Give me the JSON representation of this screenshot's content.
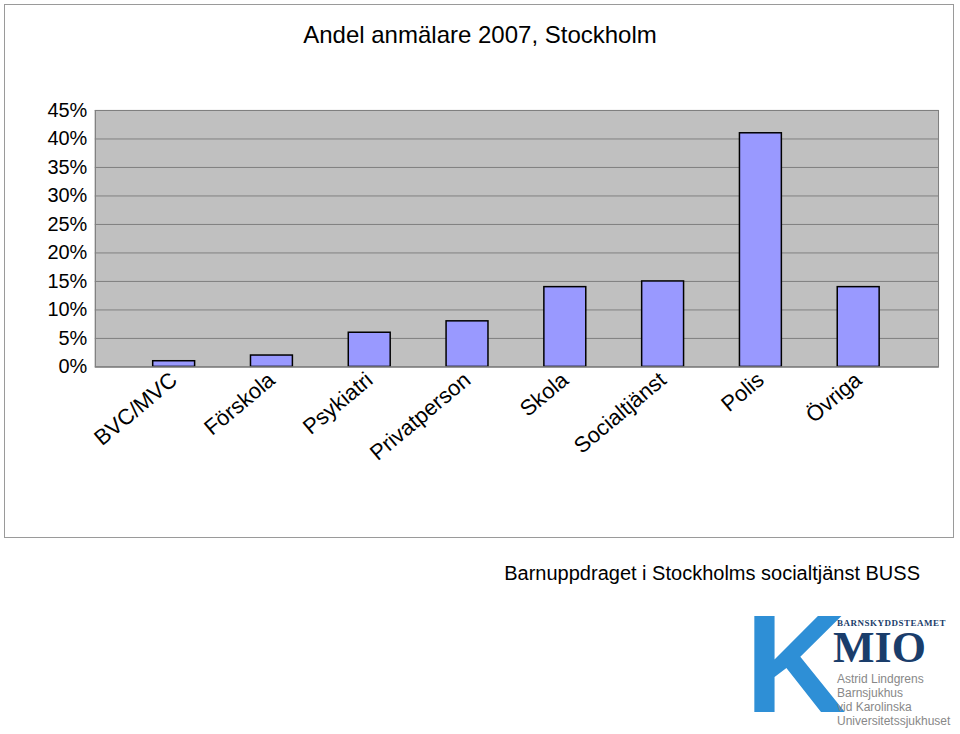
{
  "chart_data": {
    "type": "bar",
    "title": "Andel anmälare 2007, Stockholm",
    "categories": [
      "BVC/MVC",
      "Förskola",
      "Psykiatri",
      "Privatperson",
      "Skola",
      "Socialtjänst",
      "Polis",
      "Övriga"
    ],
    "values": [
      1,
      2,
      6,
      8,
      14,
      15,
      41,
      14
    ],
    "color": "#9999ff",
    "ylim": [
      0,
      45
    ],
    "yticks": [
      {
        "value": 0,
        "label": "0%"
      },
      {
        "value": 5,
        "label": "5%"
      },
      {
        "value": 10,
        "label": "10%"
      },
      {
        "value": 15,
        "label": "15%"
      },
      {
        "value": 20,
        "label": "20%"
      },
      {
        "value": 25,
        "label": "25%"
      },
      {
        "value": 30,
        "label": "30%"
      },
      {
        "value": 35,
        "label": "35%"
      },
      {
        "value": 40,
        "label": "40%"
      },
      {
        "value": 45,
        "label": "45%"
      }
    ],
    "grid": true
  },
  "caption": "Barnuppdraget i Stockholms socialtjänst BUSS",
  "logo": {
    "letter": "K",
    "team": "BARNSKYDDSTEAMET",
    "name": "MIO",
    "lines": [
      "Astrid Lindgrens",
      "Barnsjukhus",
      "vid Karolinska",
      "Universitetssjukhuset"
    ]
  }
}
